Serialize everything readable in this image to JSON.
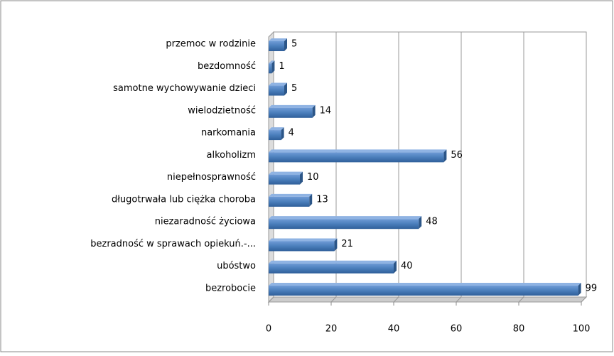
{
  "chart_data": {
    "type": "bar",
    "orientation": "horizontal",
    "categories": [
      "przemoc w rodzinie",
      "bezdomność",
      "samotne wychowywanie  dzieci",
      "wielodzietność",
      "narkomania",
      "alkoholizm",
      "niepełnosprawność",
      "długotrwała lub ciężka choroba",
      "niezaradność życiowa",
      "bezradność w sprawach opiekuń.-...",
      "ubóstwo",
      "bezrobocie"
    ],
    "values": [
      5,
      1,
      5,
      14,
      4,
      56,
      10,
      13,
      48,
      21,
      40,
      99
    ],
    "color": "#4a7ebb",
    "xlim": [
      0,
      100
    ],
    "xticks": [
      0,
      20,
      40,
      60,
      80,
      100
    ],
    "grid": true
  }
}
